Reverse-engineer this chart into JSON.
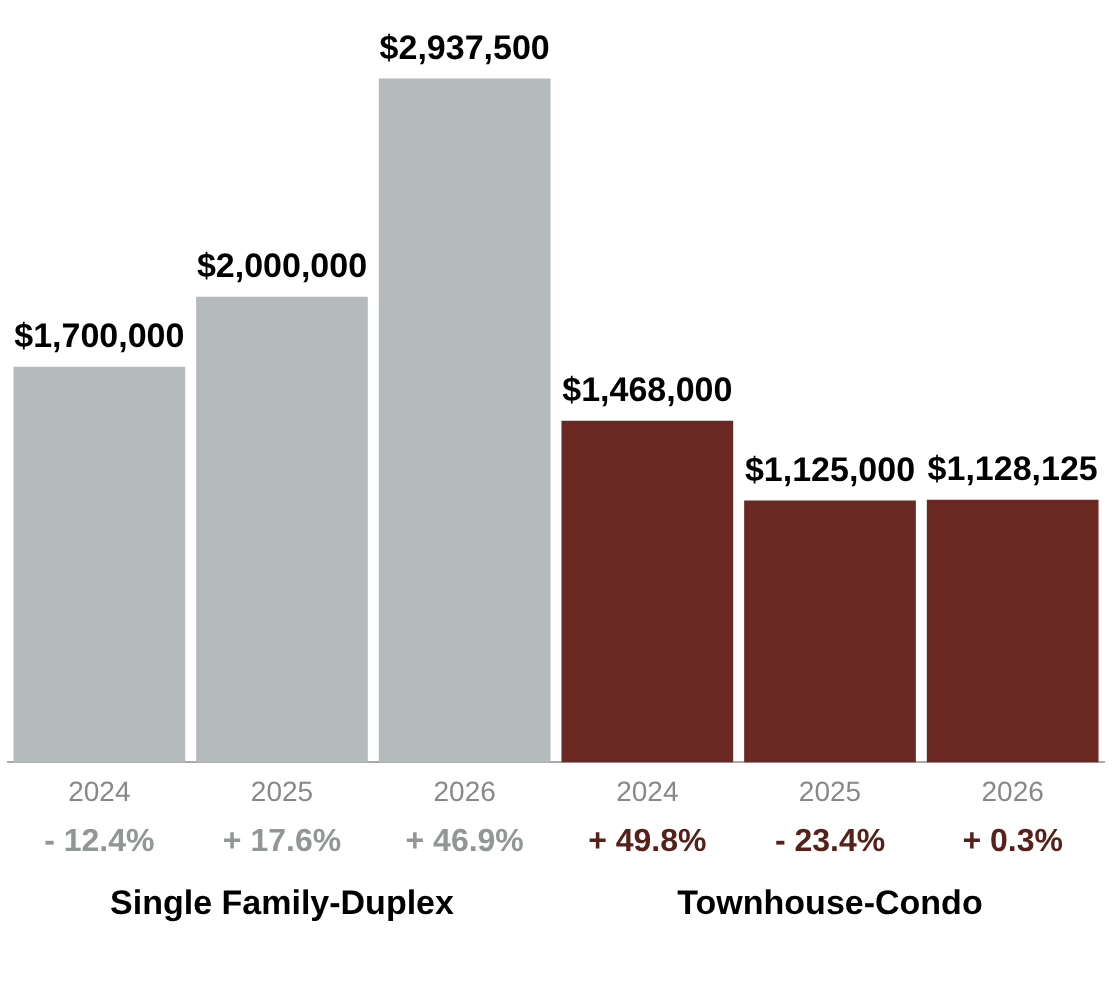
{
  "chart_data": {
    "type": "bar",
    "categories": [
      "2024",
      "2025",
      "2026",
      "2024",
      "2025",
      "2026"
    ],
    "values": [
      1700000,
      2000000,
      2937500,
      1468000,
      1125000,
      1128125
    ],
    "colors": [
      "#b5bbbc",
      "#b5bbbc",
      "#b5bbbc",
      "#6b2822",
      "#6b2822",
      "#6b2822"
    ],
    "value_labels": [
      "$1,700,000",
      "$2,000,000",
      "$2,937,500",
      "$1,468,000",
      "$1,125,000",
      "$1,128,125"
    ],
    "annotations": [
      "- 12.4%",
      "+ 17.6%",
      "+ 46.9%",
      "+ 49.8%",
      "- 23.4%",
      "+ 0.3%",
      "Single Family-Duplex",
      "Townhouse-Condo"
    ],
    "grid": false,
    "legend": false
  }
}
